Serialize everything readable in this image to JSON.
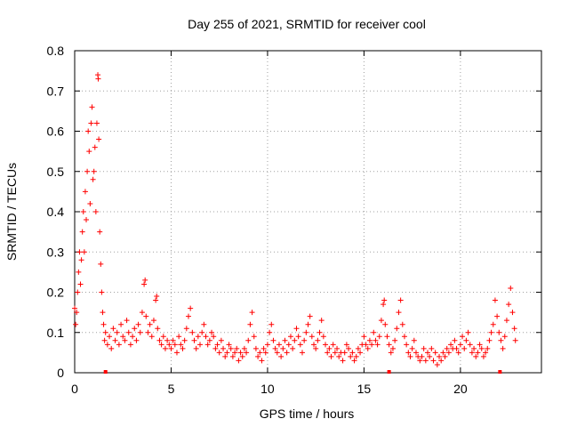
{
  "chart_data": {
    "type": "scatter",
    "title": "Day 255 of 2021, SRMTID for receiver cool",
    "xlabel": "GPS time / hours",
    "ylabel": "SRMTID / TECUs",
    "xlim": [
      0,
      24.2
    ],
    "ylim": [
      0,
      0.8
    ],
    "x_ticks": [
      0,
      5,
      10,
      15,
      20
    ],
    "y_ticks": [
      0,
      0.1,
      0.2,
      0.3,
      0.4,
      0.5,
      0.6,
      0.7,
      0.8
    ],
    "x_tick_labels": [
      "0",
      "5",
      "10",
      "15",
      "20"
    ],
    "y_tick_labels": [
      "0",
      "0.1",
      "0.2",
      "0.3",
      "0.4",
      "0.5",
      "0.6",
      "0.7",
      "0.8"
    ],
    "grid": true,
    "marker": "plus",
    "color": "#ff0000",
    "series": [
      {
        "name": "SRMTID",
        "points": [
          [
            0.0,
            0.16
          ],
          [
            0.05,
            0.12
          ],
          [
            0.1,
            0.15
          ],
          [
            0.15,
            0.2
          ],
          [
            0.2,
            0.25
          ],
          [
            0.25,
            0.3
          ],
          [
            0.3,
            0.22
          ],
          [
            0.35,
            0.28
          ],
          [
            0.4,
            0.35
          ],
          [
            0.45,
            0.4
          ],
          [
            0.5,
            0.3
          ],
          [
            0.55,
            0.45
          ],
          [
            0.6,
            0.38
          ],
          [
            0.65,
            0.5
          ],
          [
            0.7,
            0.6
          ],
          [
            0.75,
            0.55
          ],
          [
            0.8,
            0.42
          ],
          [
            0.85,
            0.62
          ],
          [
            0.9,
            0.66
          ],
          [
            0.95,
            0.48
          ],
          [
            1.0,
            0.5
          ],
          [
            1.05,
            0.56
          ],
          [
            1.1,
            0.4
          ],
          [
            1.15,
            0.62
          ],
          [
            1.2,
            0.74
          ],
          [
            1.22,
            0.73
          ],
          [
            1.25,
            0.58
          ],
          [
            1.3,
            0.35
          ],
          [
            1.35,
            0.27
          ],
          [
            1.4,
            0.2
          ],
          [
            1.45,
            0.15
          ],
          [
            1.5,
            0.12
          ],
          [
            1.55,
            0.08
          ],
          [
            1.6,
            0.1
          ],
          [
            1.7,
            0.07
          ],
          [
            1.8,
            0.09
          ],
          [
            1.9,
            0.06
          ],
          [
            2.0,
            0.11
          ],
          [
            2.1,
            0.08
          ],
          [
            2.2,
            0.1
          ],
          [
            2.3,
            0.07
          ],
          [
            2.4,
            0.12
          ],
          [
            2.5,
            0.09
          ],
          [
            2.6,
            0.08
          ],
          [
            2.7,
            0.13
          ],
          [
            2.8,
            0.1
          ],
          [
            2.9,
            0.07
          ],
          [
            3.0,
            0.09
          ],
          [
            3.1,
            0.11
          ],
          [
            3.2,
            0.08
          ],
          [
            3.3,
            0.12
          ],
          [
            3.4,
            0.1
          ],
          [
            3.5,
            0.15
          ],
          [
            3.6,
            0.22
          ],
          [
            3.65,
            0.23
          ],
          [
            3.7,
            0.14
          ],
          [
            3.8,
            0.1
          ],
          [
            3.9,
            0.12
          ],
          [
            4.0,
            0.09
          ],
          [
            4.1,
            0.13
          ],
          [
            4.2,
            0.18
          ],
          [
            4.25,
            0.19
          ],
          [
            4.3,
            0.11
          ],
          [
            4.4,
            0.08
          ],
          [
            4.5,
            0.07
          ],
          [
            4.6,
            0.09
          ],
          [
            4.7,
            0.06
          ],
          [
            4.8,
            0.08
          ],
          [
            4.9,
            0.07
          ],
          [
            5.0,
            0.06
          ],
          [
            5.1,
            0.08
          ],
          [
            5.2,
            0.07
          ],
          [
            5.3,
            0.05
          ],
          [
            5.4,
            0.09
          ],
          [
            5.5,
            0.07
          ],
          [
            5.6,
            0.06
          ],
          [
            5.7,
            0.08
          ],
          [
            5.8,
            0.11
          ],
          [
            5.9,
            0.14
          ],
          [
            6.0,
            0.16
          ],
          [
            6.1,
            0.1
          ],
          [
            6.2,
            0.08
          ],
          [
            6.3,
            0.06
          ],
          [
            6.4,
            0.09
          ],
          [
            6.5,
            0.07
          ],
          [
            6.6,
            0.1
          ],
          [
            6.7,
            0.12
          ],
          [
            6.8,
            0.09
          ],
          [
            6.9,
            0.07
          ],
          [
            7.0,
            0.08
          ],
          [
            7.1,
            0.1
          ],
          [
            7.2,
            0.09
          ],
          [
            7.3,
            0.06
          ],
          [
            7.4,
            0.07
          ],
          [
            7.5,
            0.05
          ],
          [
            7.6,
            0.08
          ],
          [
            7.7,
            0.06
          ],
          [
            7.8,
            0.04
          ],
          [
            7.9,
            0.05
          ],
          [
            8.0,
            0.07
          ],
          [
            8.1,
            0.06
          ],
          [
            8.2,
            0.04
          ],
          [
            8.3,
            0.05
          ],
          [
            8.4,
            0.06
          ],
          [
            8.5,
            0.03
          ],
          [
            8.6,
            0.05
          ],
          [
            8.7,
            0.04
          ],
          [
            8.8,
            0.06
          ],
          [
            8.9,
            0.05
          ],
          [
            9.0,
            0.08
          ],
          [
            9.1,
            0.12
          ],
          [
            9.2,
            0.15
          ],
          [
            9.3,
            0.09
          ],
          [
            9.4,
            0.06
          ],
          [
            9.5,
            0.04
          ],
          [
            9.6,
            0.05
          ],
          [
            9.7,
            0.03
          ],
          [
            9.8,
            0.06
          ],
          [
            9.9,
            0.05
          ],
          [
            10.0,
            0.07
          ],
          [
            10.1,
            0.1
          ],
          [
            10.2,
            0.12
          ],
          [
            10.3,
            0.08
          ],
          [
            10.4,
            0.06
          ],
          [
            10.5,
            0.05
          ],
          [
            10.6,
            0.07
          ],
          [
            10.7,
            0.04
          ],
          [
            10.8,
            0.06
          ],
          [
            10.9,
            0.08
          ],
          [
            11.0,
            0.05
          ],
          [
            11.1,
            0.07
          ],
          [
            11.2,
            0.09
          ],
          [
            11.3,
            0.06
          ],
          [
            11.4,
            0.08
          ],
          [
            11.5,
            0.11
          ],
          [
            11.6,
            0.09
          ],
          [
            11.7,
            0.07
          ],
          [
            11.8,
            0.05
          ],
          [
            11.9,
            0.08
          ],
          [
            12.0,
            0.1
          ],
          [
            12.1,
            0.12
          ],
          [
            12.2,
            0.14
          ],
          [
            12.3,
            0.09
          ],
          [
            12.4,
            0.07
          ],
          [
            12.5,
            0.06
          ],
          [
            12.6,
            0.08
          ],
          [
            12.7,
            0.1
          ],
          [
            12.8,
            0.13
          ],
          [
            12.9,
            0.09
          ],
          [
            13.0,
            0.07
          ],
          [
            13.1,
            0.05
          ],
          [
            13.2,
            0.06
          ],
          [
            13.3,
            0.04
          ],
          [
            13.4,
            0.07
          ],
          [
            13.5,
            0.05
          ],
          [
            13.6,
            0.06
          ],
          [
            13.7,
            0.04
          ],
          [
            13.8,
            0.05
          ],
          [
            13.9,
            0.03
          ],
          [
            14.0,
            0.05
          ],
          [
            14.1,
            0.07
          ],
          [
            14.2,
            0.06
          ],
          [
            14.3,
            0.04
          ],
          [
            14.4,
            0.05
          ],
          [
            14.5,
            0.03
          ],
          [
            14.6,
            0.04
          ],
          [
            14.7,
            0.06
          ],
          [
            14.8,
            0.05
          ],
          [
            14.9,
            0.07
          ],
          [
            15.0,
            0.09
          ],
          [
            15.1,
            0.07
          ],
          [
            15.2,
            0.06
          ],
          [
            15.3,
            0.08
          ],
          [
            15.4,
            0.07
          ],
          [
            15.5,
            0.1
          ],
          [
            15.6,
            0.08
          ],
          [
            15.7,
            0.07
          ],
          [
            15.8,
            0.09
          ],
          [
            15.9,
            0.13
          ],
          [
            16.0,
            0.17
          ],
          [
            16.05,
            0.18
          ],
          [
            16.1,
            0.12
          ],
          [
            16.2,
            0.09
          ],
          [
            16.3,
            0.07
          ],
          [
            16.4,
            0.05
          ],
          [
            16.5,
            0.06
          ],
          [
            16.6,
            0.08
          ],
          [
            16.7,
            0.11
          ],
          [
            16.8,
            0.15
          ],
          [
            16.9,
            0.18
          ],
          [
            17.0,
            0.12
          ],
          [
            17.1,
            0.09
          ],
          [
            17.2,
            0.07
          ],
          [
            17.3,
            0.05
          ],
          [
            17.4,
            0.04
          ],
          [
            17.5,
            0.06
          ],
          [
            17.6,
            0.08
          ],
          [
            17.7,
            0.05
          ],
          [
            17.8,
            0.04
          ],
          [
            17.9,
            0.03
          ],
          [
            18.0,
            0.04
          ],
          [
            18.1,
            0.06
          ],
          [
            18.2,
            0.03
          ],
          [
            18.3,
            0.05
          ],
          [
            18.4,
            0.04
          ],
          [
            18.5,
            0.06
          ],
          [
            18.6,
            0.03
          ],
          [
            18.7,
            0.05
          ],
          [
            18.8,
            0.02
          ],
          [
            18.9,
            0.04
          ],
          [
            19.0,
            0.03
          ],
          [
            19.1,
            0.05
          ],
          [
            19.2,
            0.04
          ],
          [
            19.3,
            0.06
          ],
          [
            19.4,
            0.05
          ],
          [
            19.5,
            0.07
          ],
          [
            19.6,
            0.06
          ],
          [
            19.7,
            0.08
          ],
          [
            19.8,
            0.06
          ],
          [
            19.9,
            0.05
          ],
          [
            20.0,
            0.07
          ],
          [
            20.1,
            0.09
          ],
          [
            20.2,
            0.06
          ],
          [
            20.3,
            0.08
          ],
          [
            20.4,
            0.1
          ],
          [
            20.5,
            0.07
          ],
          [
            20.6,
            0.05
          ],
          [
            20.7,
            0.06
          ],
          [
            20.8,
            0.04
          ],
          [
            20.9,
            0.05
          ],
          [
            21.0,
            0.07
          ],
          [
            21.1,
            0.06
          ],
          [
            21.2,
            0.04
          ],
          [
            21.3,
            0.05
          ],
          [
            21.4,
            0.06
          ],
          [
            21.5,
            0.08
          ],
          [
            21.6,
            0.1
          ],
          [
            21.7,
            0.12
          ],
          [
            21.8,
            0.18
          ],
          [
            21.9,
            0.14
          ],
          [
            22.0,
            0.1
          ],
          [
            22.1,
            0.08
          ],
          [
            22.2,
            0.06
          ],
          [
            22.3,
            0.09
          ],
          [
            22.4,
            0.13
          ],
          [
            22.5,
            0.17
          ],
          [
            22.6,
            0.21
          ],
          [
            22.7,
            0.15
          ],
          [
            22.8,
            0.11
          ],
          [
            22.85,
            0.08
          ]
        ]
      }
    ],
    "gap_markers_x": [
      1.6,
      16.3,
      22.05
    ]
  }
}
